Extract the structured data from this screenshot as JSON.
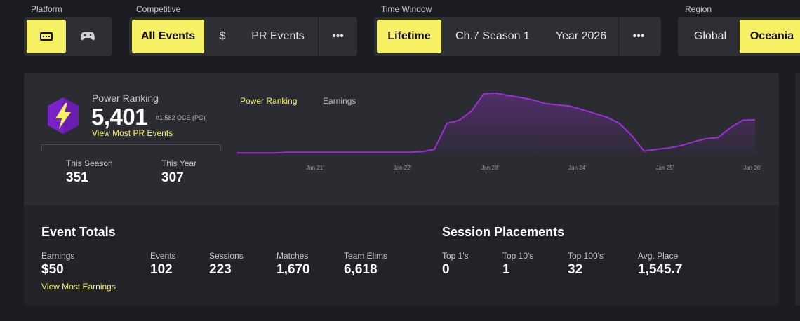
{
  "filters": {
    "platform": {
      "label": "Platform",
      "icons": [
        "keyboard-icon",
        "gamepad-icon"
      ]
    },
    "competitive": {
      "label": "Competitive",
      "options": [
        "All Events",
        "$",
        "PR Events"
      ],
      "more": "•••"
    },
    "time_window": {
      "label": "Time Window",
      "options": [
        "Lifetime",
        "Ch.7 Season 1",
        "Year 2026"
      ],
      "more": "•••"
    },
    "region": {
      "label": "Region",
      "options": [
        "Global",
        "Oceania"
      ]
    }
  },
  "power": {
    "label": "Power Ranking",
    "value": "5,401",
    "rank": "#1,582 OCE (PC)",
    "link": "View Most PR Events",
    "this_season_label": "This Season",
    "this_season": "351",
    "this_year_label": "This Year",
    "this_year": "307"
  },
  "chart_tabs": {
    "active": "Power Ranking",
    "other": "Earnings"
  },
  "chart_data": {
    "type": "area",
    "x_ticks": [
      "Jan 21'",
      "Jan 22'",
      "Jan 23'",
      "Jan 24'",
      "Jan 25'",
      "Jan 26'"
    ],
    "series": [
      {
        "color": "#9b2fd6",
        "values": [
          0.02,
          0.02,
          0.02,
          0.02,
          0.03,
          0.03,
          0.03,
          0.03,
          0.03,
          0.03,
          0.03,
          0.03,
          0.03,
          0.03,
          0.03,
          0.04,
          0.08,
          0.5,
          0.55,
          0.7,
          0.98,
          0.99,
          0.95,
          0.92,
          0.88,
          0.82,
          0.8,
          0.78,
          0.72,
          0.66,
          0.6,
          0.5,
          0.3,
          0.05,
          0.08,
          0.1,
          0.14,
          0.2,
          0.25,
          0.27,
          0.43,
          0.55,
          0.56
        ]
      }
    ]
  },
  "event_totals": {
    "title": "Event Totals",
    "stats": [
      {
        "label": "Earnings",
        "value": "$50"
      },
      {
        "label": "Events",
        "value": "102"
      },
      {
        "label": "Sessions",
        "value": "223"
      },
      {
        "label": "Matches",
        "value": "1,670"
      },
      {
        "label": "Team Elims",
        "value": "6,618"
      }
    ],
    "link": "View Most Earnings"
  },
  "session_placements": {
    "title": "Session Placements",
    "stats": [
      {
        "label": "Top 1's",
        "value": "0"
      },
      {
        "label": "Top 10's",
        "value": "1"
      },
      {
        "label": "Top 100's",
        "value": "32"
      },
      {
        "label": "Avg. Place",
        "value": "1,545.7"
      }
    ]
  },
  "colors": {
    "accent": "#f5f064",
    "line": "#9b2fd6"
  }
}
